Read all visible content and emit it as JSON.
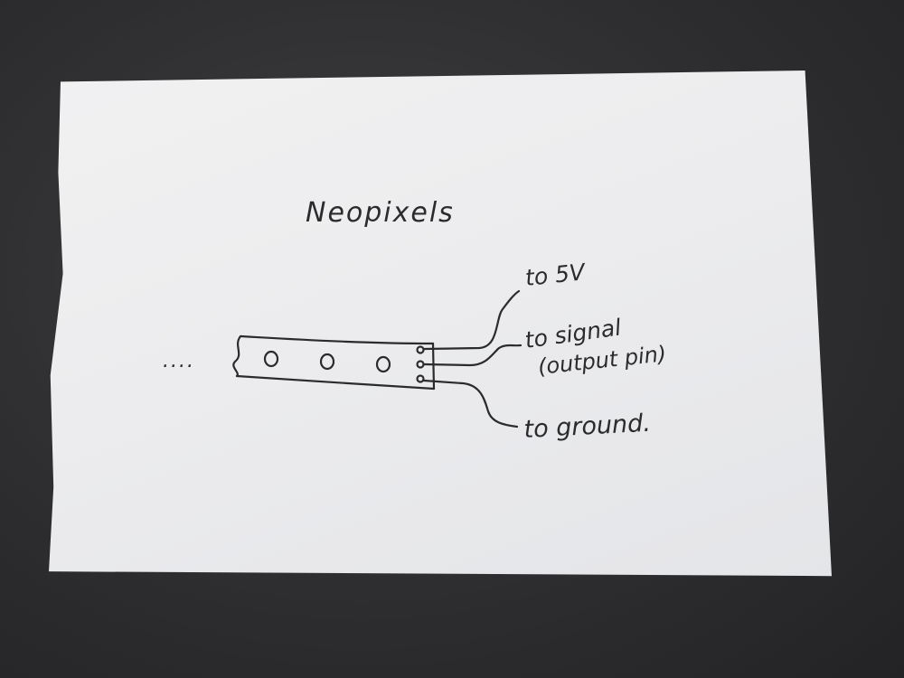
{
  "diagram": {
    "title": "Neopixels",
    "labels": {
      "power": "to 5V",
      "signal": "to signal",
      "signal_note": "(output pin)",
      "ground": "to ground."
    },
    "strip": {
      "leading_dots": "....",
      "pixel_count": 3
    },
    "colors": {
      "ink": "#2b2b2e",
      "paper": "#eeeef0",
      "background": "#333335"
    }
  }
}
